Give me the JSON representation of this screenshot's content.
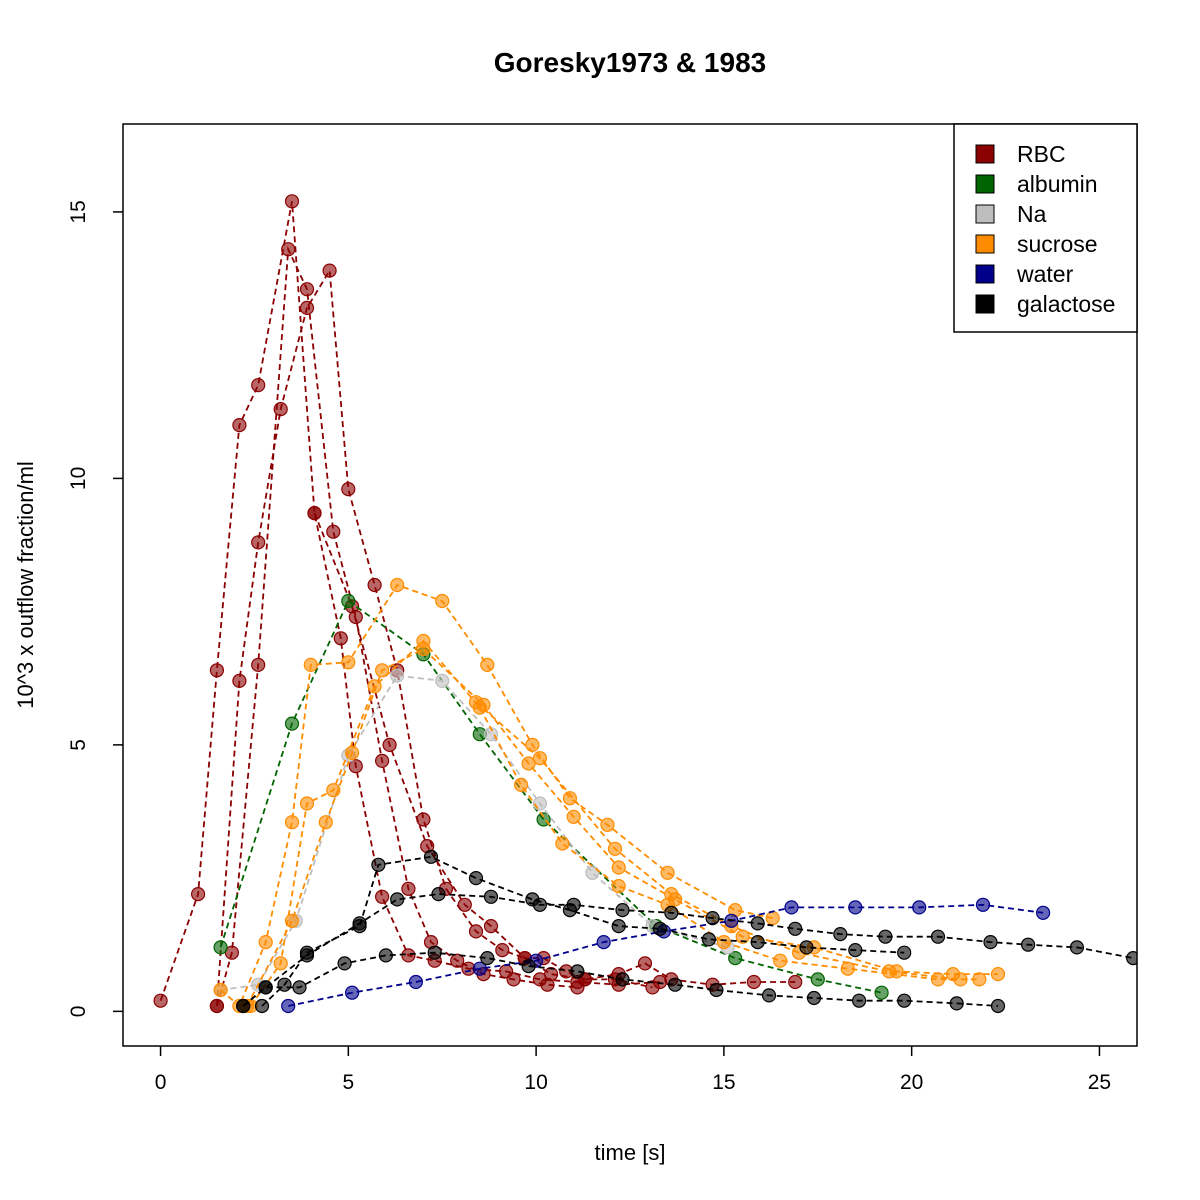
{
  "chart_data": {
    "type": "scatter",
    "title": "Goresky1973 & 1983",
    "xlabel": "time [s]",
    "ylabel": "10^3 x outflow fraction/ml",
    "xlim": [
      -1,
      26
    ],
    "ylim": [
      -0.65,
      16.65
    ],
    "xticks": [
      0,
      5,
      10,
      15,
      20,
      25
    ],
    "yticks": [
      0,
      5,
      10,
      15
    ],
    "grid": false,
    "legend_position": "top-right",
    "legend": [
      {
        "label": "RBC",
        "color": "#8B0000"
      },
      {
        "label": "albumin",
        "color": "#006400"
      },
      {
        "label": "Na",
        "color": "#BEBEBE"
      },
      {
        "label": "sucrose",
        "color": "#FF8C00"
      },
      {
        "label": "water",
        "color": "#00008B"
      },
      {
        "label": "galactose",
        "color": "#000000"
      }
    ],
    "series": [
      {
        "group": "RBC",
        "color": "#8B0000",
        "points": [
          [
            0.0,
            0.2
          ],
          [
            1.0,
            2.2
          ],
          [
            1.5,
            6.4
          ],
          [
            2.1,
            11.0
          ],
          [
            2.6,
            11.75
          ],
          [
            3.5,
            15.2
          ],
          [
            4.1,
            9.35
          ],
          [
            4.8,
            7.0
          ],
          [
            5.2,
            4.6
          ],
          [
            5.9,
            2.15
          ],
          [
            6.6,
            1.05
          ],
          [
            7.3,
            0.95
          ],
          [
            8.2,
            0.8
          ],
          [
            9.2,
            0.75
          ],
          [
            10.1,
            0.6
          ],
          [
            11.1,
            0.55
          ],
          [
            12.2,
            0.5
          ],
          [
            13.3,
            0.55
          ]
        ]
      },
      {
        "group": "RBC",
        "color": "#8B0000",
        "points": [
          [
            1.5,
            0.1
          ],
          [
            1.9,
            1.1
          ],
          [
            2.6,
            6.5
          ],
          [
            3.4,
            14.3
          ],
          [
            3.9,
            13.55
          ],
          [
            4.6,
            9.0
          ],
          [
            5.2,
            7.4
          ],
          [
            5.9,
            4.7
          ],
          [
            6.6,
            2.3
          ],
          [
            7.2,
            1.3
          ],
          [
            7.9,
            0.95
          ],
          [
            8.6,
            0.7
          ],
          [
            9.4,
            0.6
          ],
          [
            10.3,
            0.5
          ],
          [
            11.1,
            0.45
          ]
        ]
      },
      {
        "group": "RBC",
        "color": "#8B0000",
        "points": [
          [
            1.5,
            0.1
          ],
          [
            2.1,
            6.2
          ],
          [
            2.6,
            8.8
          ],
          [
            3.2,
            11.3
          ],
          [
            3.9,
            13.2
          ],
          [
            4.5,
            13.9
          ],
          [
            5.0,
            9.8
          ],
          [
            5.7,
            8.0
          ],
          [
            6.3,
            6.4
          ],
          [
            7.0,
            3.6
          ],
          [
            7.6,
            2.3
          ],
          [
            8.4,
            1.5
          ],
          [
            9.1,
            1.15
          ],
          [
            9.7,
            1.0
          ],
          [
            10.4,
            0.7
          ],
          [
            11.3,
            0.6
          ],
          [
            12.1,
            0.6
          ],
          [
            13.1,
            0.45
          ]
        ]
      },
      {
        "group": "RBC",
        "color": "#8B0000",
        "points": [
          [
            4.1,
            9.35
          ],
          [
            5.1,
            7.6
          ],
          [
            6.1,
            5.0
          ],
          [
            7.1,
            3.1
          ],
          [
            8.1,
            2.0
          ],
          [
            8.8,
            1.6
          ],
          [
            9.7,
            1.0
          ],
          [
            10.2,
            1.0
          ],
          [
            10.8,
            0.75
          ],
          [
            11.3,
            0.6
          ],
          [
            12.2,
            0.7
          ],
          [
            12.9,
            0.9
          ],
          [
            13.6,
            0.6
          ],
          [
            14.7,
            0.5
          ],
          [
            15.8,
            0.55
          ],
          [
            16.9,
            0.55
          ]
        ]
      },
      {
        "group": "albumin",
        "color": "#006400",
        "points": [
          [
            1.6,
            1.2
          ],
          [
            3.5,
            5.4
          ],
          [
            5.0,
            7.7
          ],
          [
            7.0,
            6.7
          ],
          [
            8.5,
            5.2
          ],
          [
            10.2,
            3.6
          ],
          [
            13.2,
            1.6
          ],
          [
            15.3,
            1.0
          ],
          [
            17.5,
            0.6
          ],
          [
            19.2,
            0.35
          ]
        ]
      },
      {
        "group": "Na",
        "color": "#BEBEBE",
        "points": [
          [
            1.6,
            0.4
          ],
          [
            2.6,
            0.5
          ],
          [
            3.6,
            1.7
          ],
          [
            5.0,
            4.8
          ],
          [
            6.3,
            6.3
          ],
          [
            7.5,
            6.2
          ],
          [
            8.8,
            5.2
          ],
          [
            10.1,
            3.9
          ],
          [
            11.5,
            2.6
          ],
          [
            13.1,
            1.6
          ],
          [
            15.1,
            1.2
          ]
        ]
      },
      {
        "group": "sucrose",
        "color": "#FF8C00",
        "points": [
          [
            1.6,
            0.4
          ],
          [
            2.1,
            0.1
          ],
          [
            2.8,
            1.3
          ],
          [
            3.5,
            3.55
          ],
          [
            4.0,
            6.5
          ],
          [
            5.0,
            6.55
          ],
          [
            6.3,
            8.0
          ],
          [
            7.5,
            7.7
          ],
          [
            8.7,
            6.5
          ],
          [
            9.9,
            5.0
          ],
          [
            10.9,
            4.0
          ],
          [
            11.9,
            3.5
          ],
          [
            13.5,
            2.6
          ],
          [
            15.3,
            1.9
          ],
          [
            16.3,
            1.75
          ]
        ]
      },
      {
        "group": "sucrose",
        "color": "#FF8C00",
        "points": [
          [
            2.4,
            0.1
          ],
          [
            3.2,
            0.9
          ],
          [
            3.9,
            3.9
          ],
          [
            4.6,
            4.15
          ],
          [
            5.7,
            6.1
          ],
          [
            7.0,
            6.95
          ],
          [
            8.5,
            5.7
          ],
          [
            9.6,
            4.25
          ],
          [
            10.7,
            3.15
          ],
          [
            12.2,
            2.35
          ],
          [
            13.5,
            2.0
          ],
          [
            15.0,
            1.3
          ],
          [
            16.5,
            0.95
          ],
          [
            18.3,
            0.8
          ],
          [
            20.7,
            0.6
          ],
          [
            21.8,
            0.6
          ]
        ]
      },
      {
        "group": "sucrose",
        "color": "#FF8C00",
        "points": [
          [
            2.3,
            0.1
          ],
          [
            3.5,
            1.7
          ],
          [
            4.4,
            3.55
          ],
          [
            5.1,
            4.85
          ],
          [
            5.9,
            6.4
          ],
          [
            7.0,
            6.8
          ],
          [
            8.6,
            5.75
          ],
          [
            9.8,
            4.65
          ],
          [
            11.0,
            3.65
          ],
          [
            12.2,
            2.7
          ],
          [
            13.7,
            2.1
          ],
          [
            15.5,
            1.4
          ],
          [
            17.4,
            1.2
          ],
          [
            19.6,
            0.75
          ],
          [
            21.1,
            0.7
          ],
          [
            22.3,
            0.7
          ]
        ]
      },
      {
        "group": "sucrose",
        "color": "#FF8C00",
        "points": [
          [
            8.4,
            5.8
          ],
          [
            10.1,
            4.75
          ],
          [
            12.1,
            3.05
          ],
          [
            13.6,
            2.2
          ],
          [
            15.2,
            1.6
          ],
          [
            17.0,
            1.1
          ],
          [
            19.4,
            0.75
          ],
          [
            21.3,
            0.6
          ]
        ]
      },
      {
        "group": "water",
        "color": "#00008B",
        "points": [
          [
            3.4,
            0.1
          ],
          [
            5.1,
            0.35
          ],
          [
            6.8,
            0.55
          ],
          [
            8.5,
            0.8
          ],
          [
            10.0,
            0.95
          ],
          [
            11.8,
            1.3
          ],
          [
            13.4,
            1.5
          ],
          [
            15.2,
            1.7
          ],
          [
            16.8,
            1.95
          ],
          [
            18.5,
            1.95
          ],
          [
            20.2,
            1.95
          ],
          [
            21.9,
            2.0
          ],
          [
            23.5,
            1.85
          ]
        ]
      },
      {
        "group": "galactose",
        "color": "#000000",
        "points": [
          [
            2.2,
            0.1
          ],
          [
            2.8,
            0.45
          ],
          [
            3.9,
            1.05
          ],
          [
            5.3,
            1.65
          ],
          [
            6.3,
            2.1
          ],
          [
            7.4,
            2.2
          ],
          [
            8.8,
            2.15
          ],
          [
            10.1,
            2.0
          ],
          [
            11.0,
            2.0
          ],
          [
            12.3,
            1.9
          ],
          [
            13.6,
            1.85
          ],
          [
            14.7,
            1.75
          ],
          [
            15.9,
            1.65
          ],
          [
            16.9,
            1.55
          ],
          [
            18.1,
            1.45
          ],
          [
            19.3,
            1.4
          ],
          [
            20.7,
            1.4
          ],
          [
            22.1,
            1.3
          ],
          [
            23.1,
            1.25
          ],
          [
            24.4,
            1.2
          ],
          [
            25.9,
            1.0
          ]
        ]
      },
      {
        "group": "galactose",
        "color": "#000000",
        "points": [
          [
            2.7,
            0.1
          ],
          [
            3.3,
            0.5
          ],
          [
            3.9,
            1.1
          ],
          [
            5.3,
            1.6
          ],
          [
            5.8,
            2.75
          ],
          [
            7.2,
            2.9
          ],
          [
            8.4,
            2.5
          ],
          [
            9.9,
            2.1
          ],
          [
            10.9,
            1.9
          ],
          [
            12.2,
            1.6
          ],
          [
            13.3,
            1.55
          ],
          [
            14.6,
            1.35
          ],
          [
            15.9,
            1.3
          ],
          [
            17.2,
            1.2
          ],
          [
            18.5,
            1.15
          ],
          [
            19.8,
            1.1
          ]
        ]
      },
      {
        "group": "galactose",
        "color": "#000000",
        "points": [
          [
            2.2,
            0.1
          ],
          [
            2.8,
            0.45
          ],
          [
            3.7,
            0.45
          ],
          [
            4.9,
            0.9
          ],
          [
            6.0,
            1.05
          ],
          [
            7.3,
            1.1
          ],
          [
            8.7,
            1.0
          ],
          [
            9.8,
            0.85
          ],
          [
            11.1,
            0.75
          ],
          [
            12.3,
            0.6
          ],
          [
            13.7,
            0.5
          ],
          [
            14.8,
            0.4
          ],
          [
            16.2,
            0.3
          ],
          [
            17.4,
            0.25
          ],
          [
            18.6,
            0.2
          ],
          [
            19.8,
            0.2
          ],
          [
            21.2,
            0.15
          ],
          [
            22.3,
            0.1
          ]
        ]
      }
    ]
  }
}
